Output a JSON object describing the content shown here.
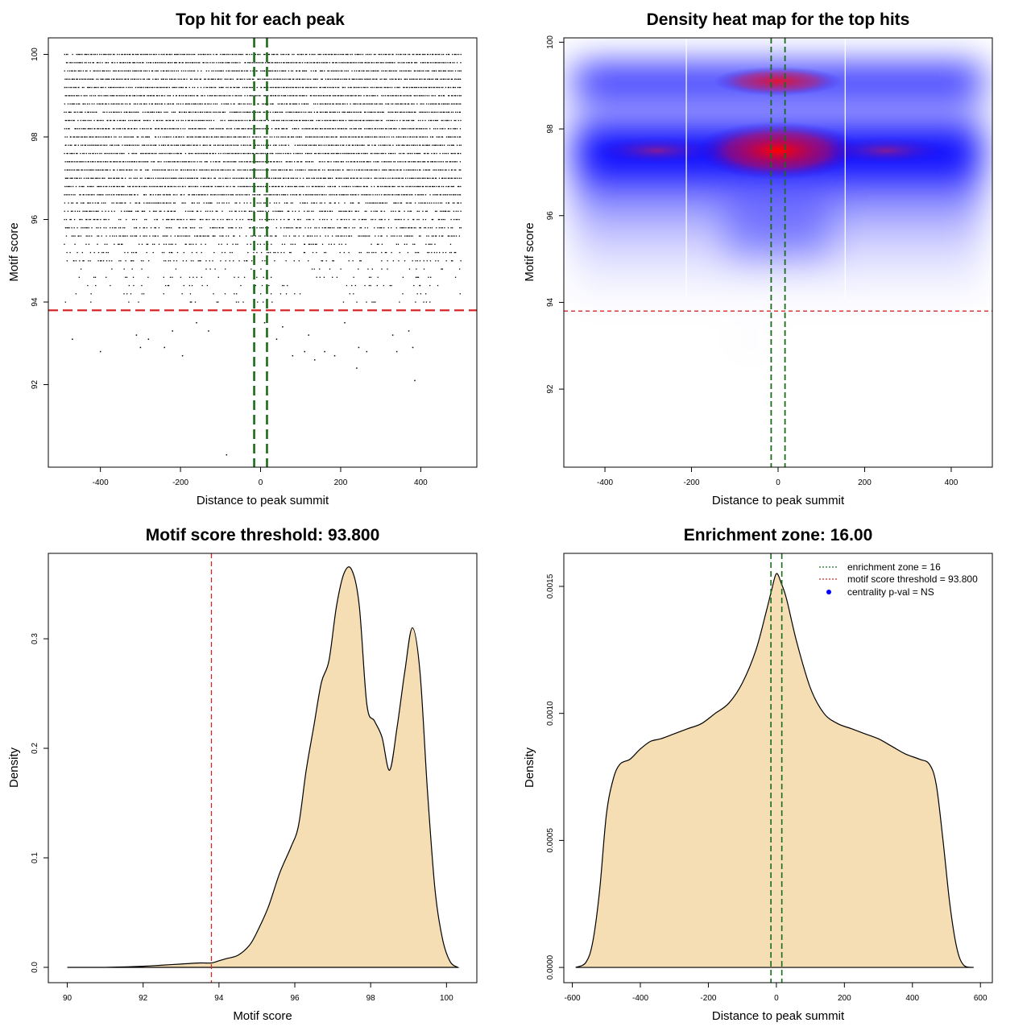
{
  "colors": {
    "green": "#1a6b1a",
    "red": "#d62728",
    "fill": "#f5deb3",
    "heat_low": "#ffffff",
    "heat_mid": "#0000ff",
    "heat_high": "#ff0000"
  },
  "chart_data": [
    {
      "type": "scatter",
      "title": "Top hit for each peak",
      "xlabel": "Distance to peak summit",
      "ylabel": "Motif score",
      "xlim": [
        -530,
        540
      ],
      "ylim": [
        90,
        100.4
      ],
      "xticks": [
        "-400",
        "-200",
        "0",
        "200",
        "400"
      ],
      "xtick_values": [
        -400,
        -200,
        0,
        200,
        400
      ],
      "yticks": [
        "92",
        "94",
        "96",
        "98",
        "100"
      ],
      "ytick_values": [
        92,
        94,
        96,
        98,
        100
      ],
      "threshold_y": 93.8,
      "zone_x": [
        -16,
        16
      ],
      "points_x_range": [
        -490,
        500
      ],
      "dense_rows": [
        94.0,
        94.2,
        94.4,
        94.6,
        94.8,
        95.0,
        95.2,
        95.4,
        95.6,
        95.8,
        96.0,
        96.2,
        96.4,
        96.6,
        96.8,
        97.0,
        97.2,
        97.4,
        97.6,
        97.8,
        98.0,
        98.2,
        98.4,
        98.6,
        98.8,
        99.0,
        99.2,
        99.4,
        99.6,
        99.8,
        100.0
      ],
      "sparse_points": [
        [
          -470,
          93.1
        ],
        [
          -400,
          92.8
        ],
        [
          -310,
          93.2
        ],
        [
          -300,
          92.9
        ],
        [
          -280,
          93.1
        ],
        [
          -240,
          92.9
        ],
        [
          -220,
          93.3
        ],
        [
          -195,
          92.7
        ],
        [
          -160,
          93.5
        ],
        [
          -130,
          93.3
        ],
        [
          -85,
          90.3
        ],
        [
          10,
          93.5
        ],
        [
          40,
          93.1
        ],
        [
          55,
          93.4
        ],
        [
          80,
          92.7
        ],
        [
          110,
          92.8
        ],
        [
          120,
          93.2
        ],
        [
          135,
          92.6
        ],
        [
          160,
          92.8
        ],
        [
          185,
          92.7
        ],
        [
          210,
          93.5
        ],
        [
          245,
          92.9
        ],
        [
          240,
          92.4
        ],
        [
          265,
          92.8
        ],
        [
          330,
          93.2
        ],
        [
          340,
          92.8
        ],
        [
          370,
          93.3
        ],
        [
          380,
          92.9
        ],
        [
          385,
          92.1
        ]
      ]
    },
    {
      "type": "heatmap",
      "title": "Density heat map for the top hits",
      "xlabel": "Distance to peak summit",
      "ylabel": "Motif score",
      "xlim": [
        -495,
        495
      ],
      "ylim": [
        90.2,
        100.1
      ],
      "xticks": [
        "-400",
        "-200",
        "0",
        "200",
        "400"
      ],
      "xtick_values": [
        -400,
        -200,
        0,
        200,
        400
      ],
      "yticks": [
        "92",
        "94",
        "96",
        "98",
        "100"
      ],
      "ytick_values": [
        92,
        94,
        96,
        98,
        100
      ],
      "threshold_y": 93.8,
      "zone_x": [
        -16,
        16
      ],
      "white_lines_x": [
        -212,
        155
      ],
      "hotspots": [
        {
          "x": 0,
          "y": 97.5,
          "level": "high"
        },
        {
          "x": 0,
          "y": 99.1,
          "level": "medium-high"
        },
        {
          "x": -280,
          "y": 97.5,
          "level": "medium"
        },
        {
          "x": 250,
          "y": 97.5,
          "level": "medium"
        }
      ]
    },
    {
      "type": "area",
      "title": "Motif score threshold: 93.800",
      "xlabel": "Motif score",
      "ylabel": "Density",
      "xlim": [
        89.5,
        100.8
      ],
      "ylim": [
        -0.014,
        0.378
      ],
      "xticks": [
        "90",
        "92",
        "94",
        "96",
        "98",
        "100"
      ],
      "xtick_values": [
        90,
        92,
        94,
        96,
        98,
        100
      ],
      "yticks": [
        "0.0",
        "0.1",
        "0.2",
        "0.3"
      ],
      "ytick_values": [
        0.0,
        0.1,
        0.2,
        0.3
      ],
      "threshold_x": 93.8,
      "x": [
        90,
        91,
        92,
        92.5,
        93,
        93.5,
        93.8,
        94,
        94.2,
        94.5,
        94.8,
        95,
        95.3,
        95.6,
        95.9,
        96.1,
        96.3,
        96.5,
        96.7,
        96.9,
        97.1,
        97.3,
        97.5,
        97.7,
        97.9,
        98.1,
        98.3,
        98.5,
        98.7,
        98.9,
        99.1,
        99.3,
        99.5,
        99.7,
        99.9,
        100.1,
        100.3
      ],
      "y": [
        0.0,
        0.0,
        0.001,
        0.002,
        0.003,
        0.004,
        0.004,
        0.006,
        0.008,
        0.011,
        0.02,
        0.032,
        0.055,
        0.086,
        0.11,
        0.13,
        0.18,
        0.22,
        0.26,
        0.28,
        0.33,
        0.36,
        0.363,
        0.33,
        0.24,
        0.225,
        0.21,
        0.18,
        0.22,
        0.27,
        0.31,
        0.27,
        0.16,
        0.07,
        0.025,
        0.005,
        0.0
      ]
    },
    {
      "type": "area",
      "title": "Enrichment zone: 16.00",
      "xlabel": "Distance to peak summit",
      "ylabel": "Density",
      "xlim": [
        -625,
        635
      ],
      "ylim": [
        -6e-05,
        0.00163
      ],
      "xticks": [
        "-600",
        "-400",
        "-200",
        "0",
        "200",
        "400",
        "600"
      ],
      "xtick_values": [
        -600,
        -400,
        -200,
        0,
        200,
        400,
        600
      ],
      "yticks": [
        "0.0000",
        "0.0005",
        "0.0010",
        "0.0015"
      ],
      "ytick_values": [
        0.0,
        0.0005,
        0.001,
        0.0015
      ],
      "zone_x": [
        -16,
        16
      ],
      "x": [
        -590,
        -560,
        -540,
        -520,
        -500,
        -480,
        -460,
        -430,
        -400,
        -370,
        -340,
        -300,
        -260,
        -220,
        -180,
        -140,
        -100,
        -60,
        -30,
        -15,
        0,
        15,
        30,
        60,
        100,
        140,
        180,
        220,
        260,
        300,
        340,
        380,
        420,
        450,
        470,
        490,
        510,
        530,
        550,
        580
      ],
      "y": [
        0.0,
        2e-05,
        0.0001,
        0.0003,
        0.0006,
        0.00074,
        0.0008,
        0.00082,
        0.00086,
        0.00089,
        0.0009,
        0.00092,
        0.00094,
        0.00096,
        0.001,
        0.00104,
        0.00112,
        0.00125,
        0.0014,
        0.00148,
        0.00155,
        0.00151,
        0.00145,
        0.00128,
        0.0011,
        0.001,
        0.00096,
        0.00094,
        0.00092,
        0.0009,
        0.00087,
        0.00084,
        0.00082,
        0.0008,
        0.00072,
        0.0005,
        0.00025,
        8e-05,
        1e-05,
        0.0
      ],
      "legend": [
        {
          "label": "enrichment zone = 16",
          "style": "dotted-green"
        },
        {
          "label": "motif score threshold = 93.800",
          "style": "dotted-red"
        },
        {
          "label": "centrality p-val = NS",
          "style": "blue-dot"
        }
      ],
      "legend_position": "top-right"
    }
  ]
}
